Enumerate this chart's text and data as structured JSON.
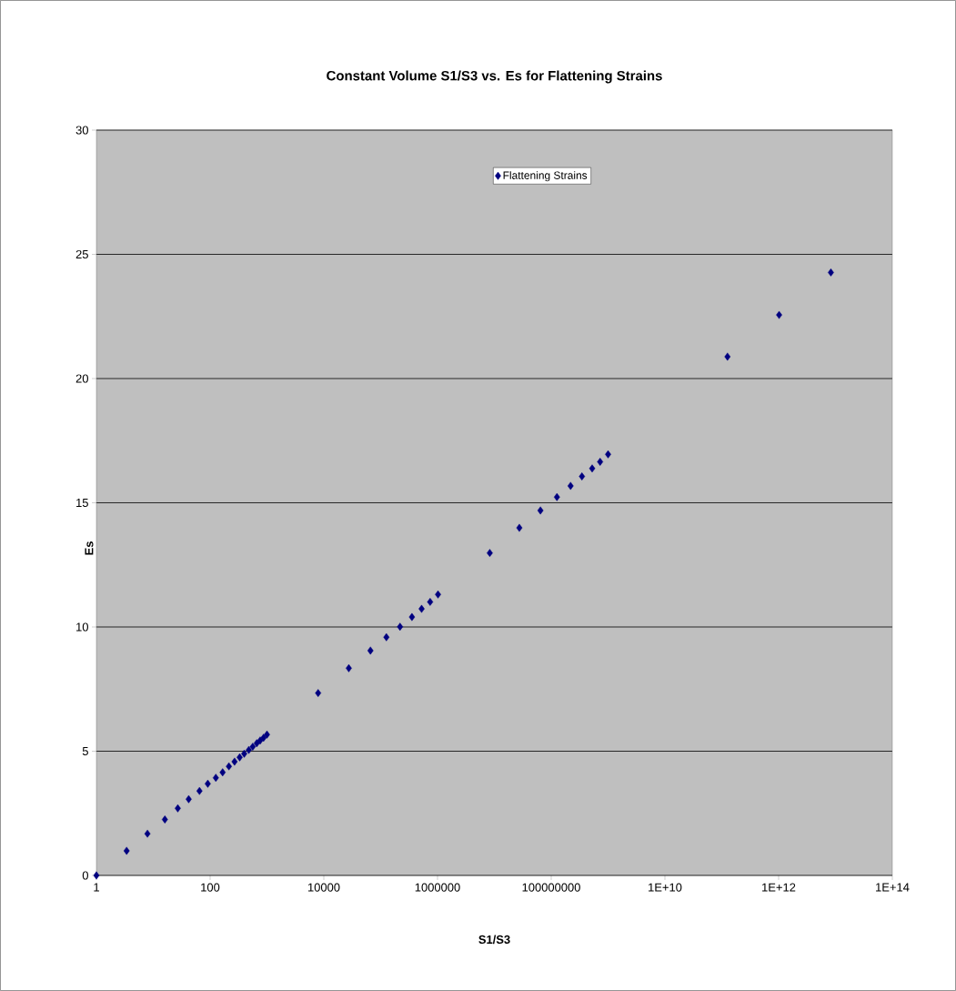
{
  "chart_data": {
    "type": "scatter",
    "title": "Constant Volume S1/S3 vs. Es for Flattening Strains",
    "xlabel": "S1/S3",
    "ylabel": "Es",
    "log": "x",
    "xlim": [
      1,
      100000000000000.0
    ],
    "xticks": [
      1,
      100,
      10000,
      1000000,
      100000000,
      {
        "value": 10000000000.0,
        "label": "1E+10"
      },
      {
        "value": 1000000000000.0,
        "label": "1E+12"
      },
      {
        "value": 100000000000000.0,
        "label": "1E+14"
      }
    ],
    "ylim": [
      0,
      30
    ],
    "yticks": [
      0,
      5,
      10,
      15,
      20,
      25,
      30
    ],
    "grid": "y",
    "legend": "top",
    "marker": "diamond",
    "series": [
      {
        "name": "Flattening Strains",
        "color": "#000080",
        "x": [
          1,
          3.4,
          7.9,
          16,
          27,
          42,
          65,
          91,
          126,
          166,
          214,
          269,
          331,
          398,
          479,
          562,
          661,
          759,
          871,
          1000,
          7940,
          27500,
          66100,
          126000,
          219000,
          355000,
          525000,
          741000,
          1020000,
          8300000,
          27500000,
          64600000,
          126000000,
          219000000,
          347000000,
          525000000,
          724000000,
          1000000000,
          126000000000,
          1020000000000,
          8300000000000
        ],
        "values": [
          0,
          0.99,
          1.68,
          2.25,
          2.7,
          3.07,
          3.4,
          3.69,
          3.93,
          4.15,
          4.39,
          4.58,
          4.75,
          4.9,
          5.05,
          5.18,
          5.32,
          5.43,
          5.54,
          5.67,
          7.34,
          8.34,
          9.05,
          9.59,
          10.01,
          10.4,
          10.73,
          11.01,
          11.31,
          12.98,
          13.99,
          14.69,
          15.23,
          15.68,
          16.06,
          16.38,
          16.65,
          16.95,
          20.88,
          22.56,
          24.27
        ]
      }
    ]
  }
}
